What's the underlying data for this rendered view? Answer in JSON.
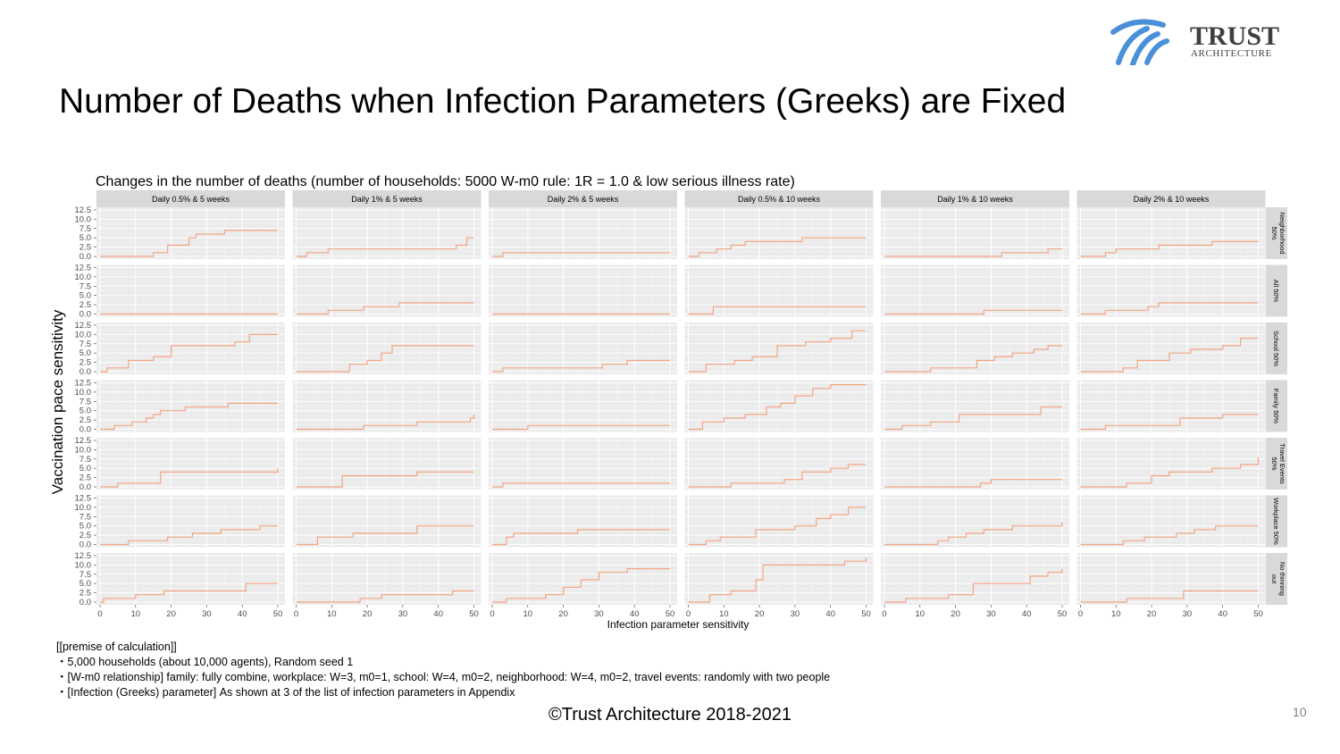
{
  "slide": {
    "title": "Number of Deaths when Infection Parameters (Greeks) are Fixed",
    "logo_word": "TRUST",
    "logo_sub": "ARCHITECTURE",
    "footer": "©Trust Architecture 2018-2021",
    "page_number": "10",
    "notes": [
      "[[premise of calculation]]",
      "・5,000 households (about 10,000 agents), Random seed 1",
      "・[W-m0 relationship] family: fully combine, workplace: W=3, m0=1, school: W=4, m0=2, neighborhood: W=4, m0=2, travel events: randomly with two people",
      "・[Infection (Greeks) parameter] As shown at 3 of the list of infection parameters in Appendix"
    ],
    "colors": {
      "line": "#f4a582",
      "panel_bg": "#ebebeb",
      "strip_bg": "#d9d9d9",
      "logo_blue": "#4a90d9",
      "logo_text": "#404040"
    }
  },
  "chart_data": {
    "type": "line",
    "title": "Changes in the number of deaths (number of households: 5000 W-m0 rule: 1R = 1.0 & low serious illness rate)",
    "xlabel": "Infection parameter sensitivity",
    "ylabel": "Vaccination pace sensitivity",
    "xlim": [
      0,
      50
    ],
    "ylim": [
      0,
      12.5
    ],
    "x_ticks": [
      "0",
      "10",
      "20",
      "30",
      "40",
      "50"
    ],
    "y_ticks": [
      "0.0",
      "2.5",
      "5.0",
      "7.5",
      "10.0",
      "12.5"
    ],
    "grid": true,
    "columns": [
      "Daily 0.5% & 5 weeks",
      "Daily 1% & 5 weeks",
      "Daily 2% & 5 weeks",
      "Daily 0.5% & 10 weeks",
      "Daily 1% & 10 weeks",
      "Daily 2% & 10 weeks"
    ],
    "rows": [
      "Neighborhood 50%",
      "All 50%",
      "School 50%",
      "Family 50%",
      "Travel Events 50%",
      "Workplace 50%",
      "No thinning out"
    ],
    "series": [
      [
        {
          "x": [
            0,
            15,
            19,
            25,
            27,
            30,
            35,
            50
          ],
          "y": [
            0,
            1,
            3,
            5,
            6,
            6,
            7,
            7
          ]
        },
        {
          "x": [
            0,
            3,
            9,
            37,
            45,
            48,
            50
          ],
          "y": [
            0,
            1,
            2,
            2,
            3,
            5,
            5
          ]
        },
        {
          "x": [
            0,
            3,
            50
          ],
          "y": [
            0,
            1,
            1
          ]
        },
        {
          "x": [
            0,
            3,
            8,
            12,
            16,
            32,
            50
          ],
          "y": [
            0,
            1,
            2,
            3,
            4,
            5,
            5
          ]
        },
        {
          "x": [
            0,
            33,
            46,
            50
          ],
          "y": [
            0,
            1,
            2,
            2
          ]
        },
        {
          "x": [
            0,
            7,
            10,
            22,
            37,
            50
          ],
          "y": [
            0,
            1,
            2,
            3,
            4,
            4
          ]
        }
      ],
      [
        {
          "x": [
            0,
            50
          ],
          "y": [
            0,
            0
          ]
        },
        {
          "x": [
            0,
            9,
            19,
            29,
            50
          ],
          "y": [
            0,
            1,
            2,
            3,
            3
          ]
        },
        {
          "x": [
            0,
            50
          ],
          "y": [
            0,
            0
          ]
        },
        {
          "x": [
            0,
            7,
            50
          ],
          "y": [
            0,
            2,
            2
          ]
        },
        {
          "x": [
            0,
            28,
            50
          ],
          "y": [
            0,
            1,
            1
          ]
        },
        {
          "x": [
            0,
            7,
            19,
            22,
            50
          ],
          "y": [
            0,
            1,
            2,
            3,
            3
          ]
        }
      ],
      [
        {
          "x": [
            0,
            2,
            8,
            15,
            20,
            38,
            42,
            50
          ],
          "y": [
            0,
            1,
            3,
            4,
            7,
            8,
            10,
            10
          ]
        },
        {
          "x": [
            0,
            15,
            20,
            24,
            27,
            50
          ],
          "y": [
            0,
            2,
            3,
            5,
            7,
            7
          ]
        },
        {
          "x": [
            0,
            3,
            31,
            38,
            50
          ],
          "y": [
            0,
            1,
            2,
            3,
            3
          ]
        },
        {
          "x": [
            0,
            5,
            13,
            18,
            25,
            33,
            40,
            46,
            50
          ],
          "y": [
            0,
            2,
            3,
            4,
            7,
            8,
            9,
            11,
            11
          ]
        },
        {
          "x": [
            0,
            13,
            26,
            31,
            36,
            42,
            46,
            50
          ],
          "y": [
            0,
            1,
            3,
            4,
            5,
            6,
            7,
            7
          ]
        },
        {
          "x": [
            0,
            12,
            16,
            25,
            31,
            40,
            45,
            50
          ],
          "y": [
            0,
            1,
            3,
            5,
            6,
            7,
            9,
            9
          ]
        }
      ],
      [
        {
          "x": [
            0,
            4,
            9,
            13,
            15,
            17,
            24,
            36,
            50
          ],
          "y": [
            0,
            1,
            2,
            3,
            4,
            5,
            6,
            7,
            7
          ]
        },
        {
          "x": [
            0,
            19,
            34,
            49,
            50
          ],
          "y": [
            0,
            1,
            2,
            3,
            4
          ]
        },
        {
          "x": [
            0,
            10,
            50
          ],
          "y": [
            0,
            1,
            1
          ]
        },
        {
          "x": [
            0,
            4,
            10,
            16,
            22,
            26,
            30,
            35,
            40,
            50
          ],
          "y": [
            0,
            2,
            3,
            4,
            6,
            7,
            9,
            11,
            12,
            12
          ]
        },
        {
          "x": [
            0,
            5,
            13,
            21,
            28,
            44,
            50
          ],
          "y": [
            0,
            1,
            2,
            4,
            4,
            6,
            6
          ]
        },
        {
          "x": [
            0,
            7,
            18,
            28,
            40,
            50
          ],
          "y": [
            0,
            1,
            1,
            3,
            4,
            4
          ]
        }
      ],
      [
        {
          "x": [
            0,
            5,
            15,
            17,
            49,
            50
          ],
          "y": [
            0,
            1,
            1,
            4,
            4,
            5
          ]
        },
        {
          "x": [
            0,
            13,
            34,
            50
          ],
          "y": [
            0,
            3,
            4,
            4
          ]
        },
        {
          "x": [
            0,
            3,
            50
          ],
          "y": [
            0,
            1,
            1
          ]
        },
        {
          "x": [
            0,
            12,
            27,
            32,
            40,
            45,
            50
          ],
          "y": [
            0,
            1,
            2,
            4,
            5,
            6,
            6
          ]
        },
        {
          "x": [
            0,
            27,
            30,
            50
          ],
          "y": [
            0,
            1,
            2,
            2
          ]
        },
        {
          "x": [
            0,
            13,
            20,
            25,
            37,
            45,
            50
          ],
          "y": [
            0,
            1,
            3,
            4,
            5,
            6,
            8
          ]
        }
      ],
      [
        {
          "x": [
            0,
            8,
            19,
            26,
            34,
            45,
            50
          ],
          "y": [
            0,
            1,
            2,
            3,
            4,
            5,
            5
          ]
        },
        {
          "x": [
            0,
            6,
            11,
            16,
            34,
            50
          ],
          "y": [
            0,
            2,
            2,
            3,
            5,
            5
          ]
        },
        {
          "x": [
            0,
            4,
            6,
            24,
            50
          ],
          "y": [
            0,
            2,
            3,
            4,
            4
          ]
        },
        {
          "x": [
            0,
            5,
            9,
            19,
            30,
            36,
            40,
            45,
            50
          ],
          "y": [
            0,
            1,
            2,
            4,
            5,
            7,
            8,
            10,
            10
          ]
        },
        {
          "x": [
            0,
            15,
            18,
            23,
            28,
            36,
            50
          ],
          "y": [
            0,
            1,
            2,
            3,
            4,
            5,
            6
          ]
        },
        {
          "x": [
            0,
            12,
            18,
            27,
            32,
            38,
            50
          ],
          "y": [
            0,
            1,
            2,
            3,
            4,
            5,
            5
          ]
        }
      ],
      [
        {
          "x": [
            0,
            1,
            10,
            18,
            37,
            41,
            50
          ],
          "y": [
            0,
            1,
            2,
            3,
            3,
            5,
            5
          ]
        },
        {
          "x": [
            0,
            18,
            24,
            44,
            50
          ],
          "y": [
            0,
            1,
            2,
            3,
            3
          ]
        },
        {
          "x": [
            0,
            4,
            15,
            20,
            25,
            30,
            38,
            50
          ],
          "y": [
            0,
            1,
            2,
            4,
            6,
            8,
            9,
            9
          ]
        },
        {
          "x": [
            0,
            6,
            12,
            19,
            21,
            38,
            44,
            50
          ],
          "y": [
            0,
            2,
            3,
            6,
            10,
            10,
            11,
            12
          ]
        },
        {
          "x": [
            0,
            6,
            18,
            25,
            41,
            46,
            50
          ],
          "y": [
            0,
            1,
            2,
            5,
            7,
            8,
            9
          ]
        },
        {
          "x": [
            0,
            13,
            29,
            50
          ],
          "y": [
            0,
            1,
            3,
            3
          ]
        }
      ]
    ]
  }
}
